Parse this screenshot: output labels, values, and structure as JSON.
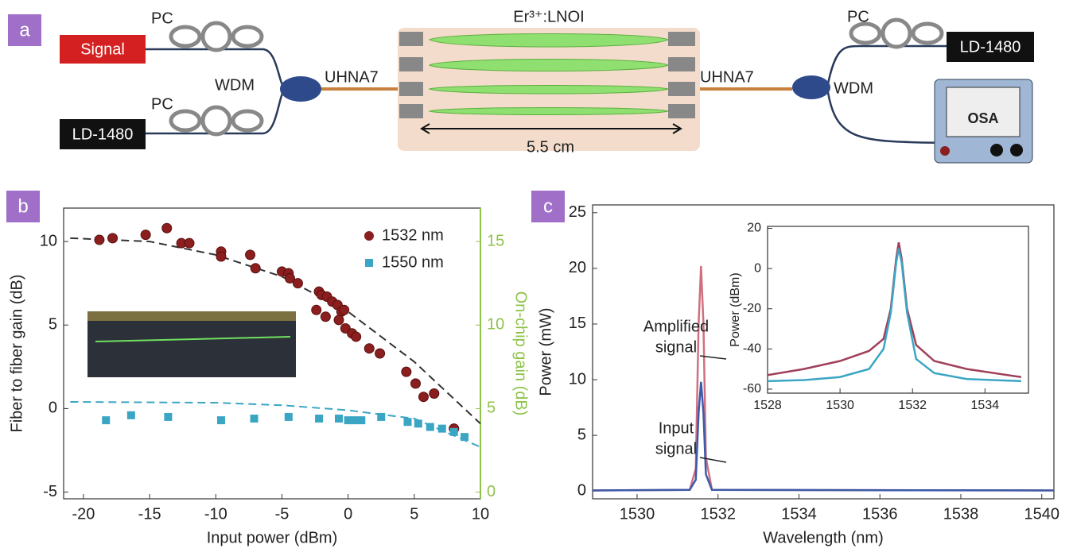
{
  "diagram": {
    "label": "a",
    "chip": "Er³⁺:LNOI",
    "length": "5.5 cm",
    "left": {
      "signal": "Signal",
      "pump": "LD-1480",
      "pc": [
        "PC",
        "PC"
      ],
      "wdm": "WDM",
      "fiber": "UHNA7"
    },
    "right": {
      "pc": "PC",
      "pump": "LD-1480",
      "wdm": "WDM",
      "fiber": "UHNA7",
      "osa": "OSA"
    }
  },
  "chart_data": [
    {
      "type": "scatter",
      "panel_label": "b",
      "xlabel": "Input power (dBm)",
      "ylabel": "Fiber to fiber gain (dB)",
      "y2label": "On-chip gain (dB)",
      "y2color": "#8fc34a",
      "xlim": [
        -21.5,
        10
      ],
      "xticks": [
        -20,
        -15,
        -10,
        -5,
        0,
        5,
        10
      ],
      "ylim": [
        -5.4,
        12
      ],
      "yticks": [
        -5,
        0,
        5,
        10
      ],
      "y2lim": [
        -0.4,
        17
      ],
      "y2ticks": [
        0,
        5,
        10,
        15
      ],
      "legend": "upper right",
      "series": [
        {
          "name": "1532 nm",
          "color": "#8b1e1e",
          "marker": "circle",
          "x": [
            -18.8,
            -17.8,
            -15.3,
            -13.7,
            -12.6,
            -12,
            -9.6,
            -9.6,
            -7.4,
            -7,
            -5,
            -4.5,
            -4.4,
            -3.8,
            -2.2,
            -2,
            -1.6,
            -2.4,
            -1.2,
            -0.8,
            -1.7,
            -0.5,
            -0.3,
            -0.7,
            -0.2,
            0.3,
            0.6,
            1.6,
            2.4,
            4.4,
            5.1,
            6.5,
            5.7,
            8
          ],
          "values": [
            10.1,
            10.2,
            10.4,
            10.8,
            9.9,
            9.9,
            9.4,
            9.1,
            9.2,
            8.4,
            8.2,
            8.1,
            7.8,
            7.5,
            7,
            6.8,
            6.7,
            5.9,
            6.4,
            6.2,
            5.5,
            5.8,
            5.9,
            5.3,
            4.8,
            4.5,
            4.3,
            3.6,
            3.3,
            2.2,
            1.5,
            0.9,
            0.7,
            -1.2
          ]
        },
        {
          "name": "1550 nm",
          "color": "#3aa6c4",
          "marker": "square",
          "x": [
            -18.3,
            -16.4,
            -13.6,
            -9.6,
            -7.1,
            -4.5,
            -2.2,
            -0.7,
            0,
            0.5,
            1,
            2.5,
            4.5,
            5.3,
            6.2,
            7.1,
            8,
            8.8
          ],
          "values": [
            -0.7,
            -0.4,
            -0.5,
            -0.7,
            -0.6,
            -0.5,
            -0.6,
            -0.6,
            -0.7,
            -0.7,
            -0.7,
            -0.5,
            -0.8,
            -0.9,
            -1.1,
            -1.2,
            -1.4,
            -1.7
          ]
        }
      ],
      "fits": [
        {
          "color": "#333333",
          "x": [
            -21,
            -15,
            -10,
            -5,
            0,
            5,
            10
          ],
          "values": [
            10.2,
            10,
            9.2,
            7.9,
            5.8,
            2.8,
            -0.9
          ]
        },
        {
          "color": "#3aa6c4",
          "x": [
            -21,
            -10,
            -5,
            0,
            5,
            10
          ],
          "values": [
            0.4,
            0.35,
            0.2,
            -0.1,
            -0.6,
            -2.3
          ]
        }
      ]
    },
    {
      "type": "line",
      "panel_label": "c",
      "xlabel": "Wavelength (nm)",
      "ylabel": "Power (mW)",
      "xlim": [
        1528.9,
        1540.3
      ],
      "xticks": [
        1530,
        1532,
        1534,
        1536,
        1538,
        1540
      ],
      "ylim": [
        -0.7,
        25.7
      ],
      "yticks": [
        0,
        5,
        10,
        15,
        20,
        25
      ],
      "x": [
        1528.9,
        1531.3,
        1531.45,
        1531.52,
        1531.58,
        1531.64,
        1531.7,
        1531.85,
        1540.3
      ],
      "series": [
        {
          "color": "#d0707f",
          "values": [
            0.05,
            0.1,
            2,
            15,
            20.2,
            15,
            3,
            0.1,
            0.05
          ]
        },
        {
          "color": "#3c5aa8",
          "values": [
            0.05,
            0.1,
            1,
            7,
            9.8,
            7,
            1.5,
            0.1,
            0.05
          ]
        }
      ],
      "annotations": [
        {
          "lines": [
            "Amplified",
            "signal"
          ]
        },
        {
          "lines": [
            "Input",
            "signal"
          ]
        }
      ]
    },
    {
      "type": "line",
      "ylabel": "Power (dBm)",
      "xlim": [
        1528,
        1535.2
      ],
      "xticks": [
        1528,
        1530,
        1532,
        1534
      ],
      "ylim": [
        -62,
        21
      ],
      "yticks": [
        20,
        0,
        -20,
        -40,
        -60
      ],
      "x": [
        1528,
        1529,
        1530,
        1530.8,
        1531.2,
        1531.4,
        1531.55,
        1531.62,
        1531.7,
        1531.85,
        1532.1,
        1532.6,
        1533.5,
        1535
      ],
      "series": [
        {
          "color": "#a0405a",
          "values": [
            -53,
            -50,
            -46,
            -41,
            -35,
            -20,
            5,
            13,
            5,
            -20,
            -38,
            -46,
            -50,
            -54
          ]
        },
        {
          "color": "#3aa6c4",
          "values": [
            -56,
            -55.5,
            -54,
            -50,
            -40,
            -22,
            3,
            10,
            3,
            -22,
            -45,
            -52,
            -55,
            -56
          ]
        }
      ]
    }
  ]
}
